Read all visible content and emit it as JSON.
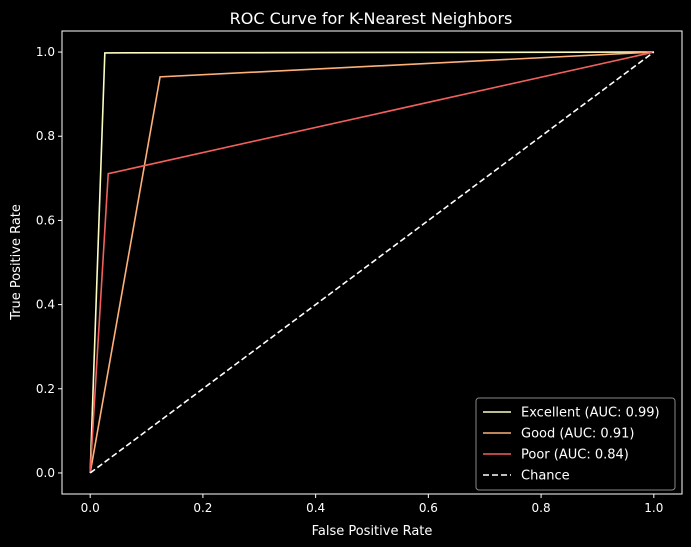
{
  "chart_data": {
    "type": "line",
    "title": "ROC Curve for K-Nearest Neighbors",
    "xlabel": "False Positive Rate",
    "ylabel": "True Positive Rate",
    "xlim": [
      -0.05,
      1.05
    ],
    "ylim": [
      -0.05,
      1.05
    ],
    "xticks": [
      0.0,
      0.2,
      0.4,
      0.6,
      0.8,
      1.0
    ],
    "yticks": [
      0.0,
      0.2,
      0.4,
      0.6,
      0.8,
      1.0
    ],
    "xtick_labels": [
      "0.0",
      "0.2",
      "0.4",
      "0.6",
      "0.8",
      "1.0"
    ],
    "ytick_labels": [
      "0.0",
      "0.2",
      "0.4",
      "0.6",
      "0.8",
      "1.0"
    ],
    "grid": false,
    "legend_position": "lower-right",
    "series": [
      {
        "name": "Excellent (AUC: 0.99)",
        "color": "#fcfdbf",
        "dash": "solid",
        "x": [
          0.0,
          0.026,
          1.0
        ],
        "y": [
          0.0,
          0.998,
          1.0
        ]
      },
      {
        "name": "Good (AUC: 0.91)",
        "color": "#feb078",
        "dash": "solid",
        "x": [
          0.0,
          0.124,
          1.0
        ],
        "y": [
          0.0,
          0.941,
          1.0
        ]
      },
      {
        "name": "Poor (AUC: 0.84)",
        "color": "#f1605d",
        "dash": "solid",
        "x": [
          0.0,
          0.032,
          1.0
        ],
        "y": [
          0.0,
          0.711,
          1.0
        ]
      },
      {
        "name": "Chance",
        "color": "#ffffff",
        "dash": "dashed",
        "x": [
          0.0,
          1.0
        ],
        "y": [
          0.0,
          1.0
        ]
      }
    ]
  }
}
